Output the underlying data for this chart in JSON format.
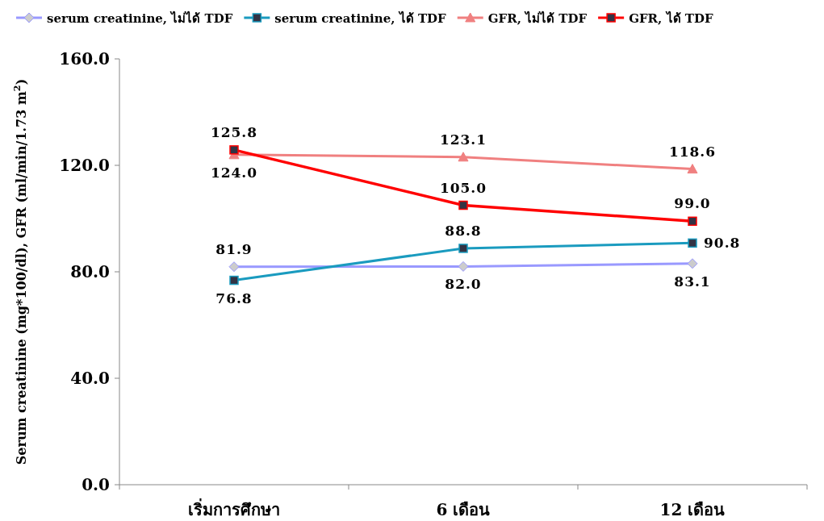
{
  "chart_data": {
    "type": "line",
    "ylabel": "Serum creatinine (mg*100/dl), GFR (ml/min/1.73 m$^{2}$)",
    "categories": [
      "เริ่มการศึกษา",
      "6 เดือน",
      "12 เดือน"
    ],
    "ylim": [
      0,
      160
    ],
    "yticks": [
      {
        "value": 0,
        "label": "0.0"
      },
      {
        "value": 40,
        "label": "40.0"
      },
      {
        "value": 80,
        "label": "80.0"
      },
      {
        "value": 120,
        "label": "120.0"
      },
      {
        "value": 160,
        "label": "160.0"
      }
    ],
    "series": [
      {
        "name": "serum creatinine, ไม่ได้ TDF",
        "color": "#9999ff",
        "marker": "diamond",
        "values": [
          81.9,
          82.0,
          83.1
        ],
        "value_labels": [
          "81.9",
          "82.0",
          "83.1"
        ]
      },
      {
        "name": "serum creatinine, ได้ TDF",
        "color": "#1a9bbf",
        "marker": "square",
        "values": [
          76.8,
          88.8,
          90.8
        ],
        "value_labels": [
          "76.8",
          "88.8",
          "90.8"
        ]
      },
      {
        "name": "GFR, ไม่ได้ TDF",
        "color": "#f08080",
        "marker": "triangle",
        "values": [
          124.0,
          123.1,
          118.6
        ],
        "value_labels": [
          "124.0",
          "123.1",
          "118.6"
        ]
      },
      {
        "name": "GFR, ได้ TDF",
        "color": "#ff0000",
        "marker": "square",
        "values": [
          125.8,
          105.0,
          99.0
        ],
        "value_labels": [
          "125.8",
          "105.0",
          "99.0"
        ]
      }
    ],
    "legend": "top",
    "grid": false
  }
}
